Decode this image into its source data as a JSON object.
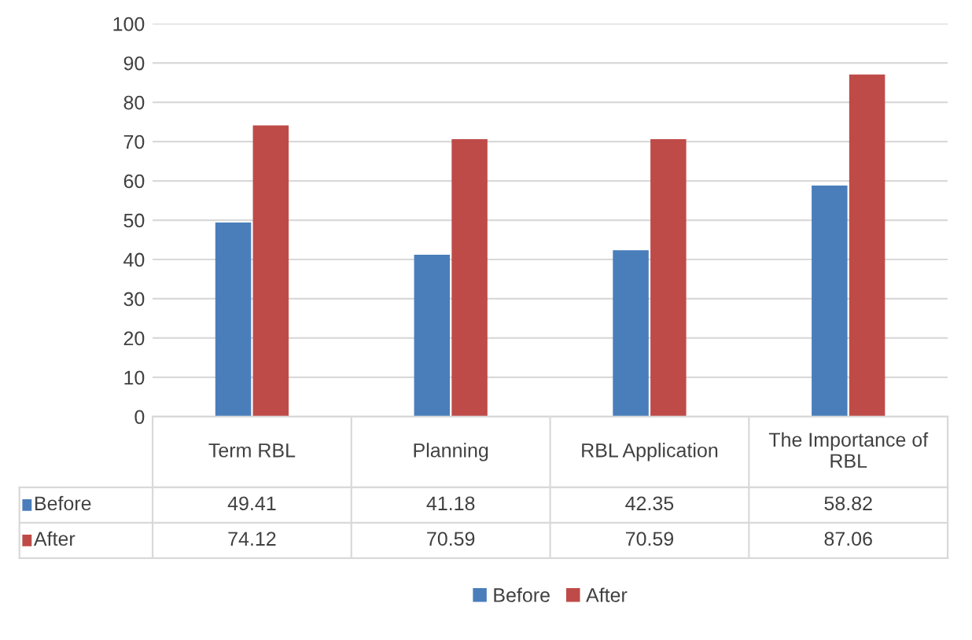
{
  "chart_data": {
    "type": "bar",
    "categories": [
      "Term RBL",
      "Planning",
      "RBL Application",
      "The Importance of RBL"
    ],
    "series": [
      {
        "name": "Before",
        "color": "#4a7ebb",
        "values": [
          49.41,
          41.18,
          42.35,
          58.82
        ]
      },
      {
        "name": "After",
        "color": "#be4b48",
        "values": [
          74.12,
          70.59,
          70.59,
          87.06
        ]
      }
    ],
    "ylim": [
      0,
      100
    ],
    "yticks": [
      0,
      10,
      20,
      30,
      40,
      50,
      60,
      70,
      80,
      90,
      100
    ],
    "grid": "y",
    "legend": "bottom",
    "data_labels": true
  }
}
